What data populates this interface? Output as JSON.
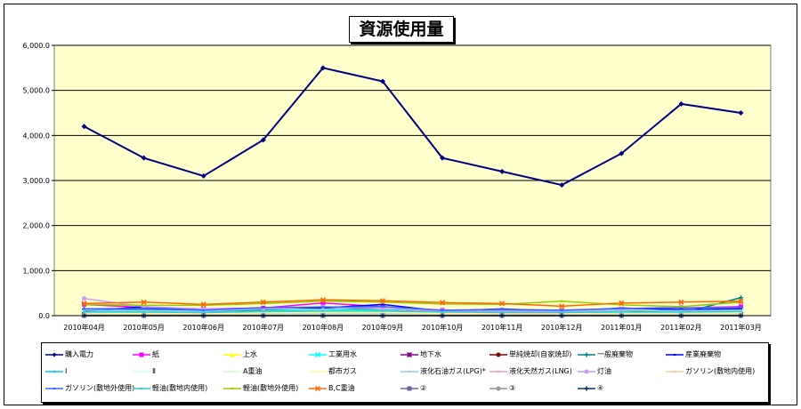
{
  "chart_data": {
    "type": "line",
    "title": "資源使用量",
    "categories": [
      "2010年04月",
      "2010年05月",
      "2010年06月",
      "2010年07月",
      "2010年08月",
      "2010年09月",
      "2010年10月",
      "2010年11月",
      "2010年12月",
      "2011年01月",
      "2011年02月",
      "2011年03月"
    ],
    "ylim": [
      0,
      6000
    ],
    "yticks": [
      "0.0",
      "1,000.0",
      "2,000.0",
      "3,000.0",
      "4,000.0",
      "5,000.0",
      "6,000.0"
    ],
    "grid": true,
    "plot_bg": "#ffffcc",
    "legend_position": "bottom",
    "series": [
      {
        "name": "購入電力",
        "color": "#000080",
        "marker": "diamond",
        "values": [
          4200,
          3500,
          3100,
          3900,
          5500,
          5200,
          3500,
          3200,
          2900,
          3600,
          4700,
          4500
        ]
      },
      {
        "name": "紙",
        "color": "#ff00ff",
        "marker": "square",
        "values": [
          250,
          180,
          150,
          170,
          280,
          200,
          120,
          100,
          110,
          150,
          170,
          200
        ]
      },
      {
        "name": "上水",
        "color": "#ffff00",
        "marker": "triangle",
        "values": [
          60,
          55,
          50,
          60,
          70,
          65,
          55,
          50,
          50,
          55,
          60,
          60
        ]
      },
      {
        "name": "工業用水",
        "color": "#00ffff",
        "marker": "x",
        "values": [
          100,
          90,
          80,
          110,
          130,
          120,
          90,
          80,
          80,
          90,
          100,
          110
        ]
      },
      {
        "name": "地下水",
        "color": "#800080",
        "marker": "star",
        "values": [
          20,
          20,
          20,
          20,
          20,
          20,
          20,
          20,
          20,
          20,
          20,
          20
        ]
      },
      {
        "name": "単純焼却(自家焼却)",
        "color": "#800000",
        "marker": "circle",
        "values": [
          10,
          10,
          10,
          10,
          10,
          10,
          10,
          10,
          10,
          10,
          10,
          10
        ]
      },
      {
        "name": "一般廃棄物",
        "color": "#008080",
        "marker": "plus",
        "values": [
          150,
          140,
          100,
          130,
          160,
          150,
          100,
          110,
          90,
          120,
          50,
          400
        ]
      },
      {
        "name": "産業廃棄物",
        "color": "#0000ff",
        "marker": "none",
        "values": [
          100,
          200,
          120,
          160,
          170,
          250,
          100,
          150,
          90,
          170,
          130,
          150
        ]
      },
      {
        "name": "Ⅰ",
        "color": "#00ccff",
        "marker": "none",
        "values": [
          50,
          50,
          50,
          50,
          50,
          50,
          50,
          50,
          50,
          50,
          50,
          50
        ]
      },
      {
        "name": "Ⅱ",
        "color": "#ccffff",
        "marker": "none",
        "values": [
          40,
          40,
          40,
          40,
          40,
          40,
          40,
          40,
          40,
          40,
          40,
          40
        ]
      },
      {
        "name": "A重油",
        "color": "#ccffcc",
        "marker": "none",
        "values": [
          30,
          30,
          30,
          30,
          30,
          30,
          30,
          30,
          30,
          30,
          30,
          30
        ]
      },
      {
        "name": "都市ガス",
        "color": "#ffff99",
        "marker": "none",
        "values": [
          70,
          60,
          60,
          70,
          80,
          80,
          60,
          60,
          60,
          70,
          70,
          70
        ]
      },
      {
        "name": "液化石油ガス(LPG)*",
        "color": "#99ccff",
        "marker": "none",
        "values": [
          120,
          110,
          100,
          150,
          140,
          200,
          100,
          90,
          90,
          120,
          110,
          120
        ]
      },
      {
        "name": "液化天然ガス(LNG)",
        "color": "#ff99cc",
        "marker": "none",
        "values": [
          20,
          20,
          20,
          20,
          20,
          20,
          20,
          20,
          20,
          20,
          20,
          20
        ]
      },
      {
        "name": "灯油",
        "color": "#cc99ff",
        "marker": "circle",
        "values": [
          380,
          200,
          150,
          150,
          200,
          150,
          100,
          100,
          100,
          150,
          200,
          300
        ]
      },
      {
        "name": "ガソリン(敷地内使用)",
        "color": "#ffcc99",
        "marker": "none",
        "values": [
          30,
          30,
          30,
          30,
          30,
          30,
          30,
          30,
          30,
          30,
          30,
          30
        ]
      },
      {
        "name": "ガソリン(敷地外使用)",
        "color": "#3366ff",
        "marker": "none",
        "values": [
          150,
          160,
          120,
          180,
          190,
          200,
          120,
          140,
          120,
          160,
          170,
          180
        ]
      },
      {
        "name": "軽油(敷地内使用)",
        "color": "#33cccc",
        "marker": "none",
        "values": [
          80,
          80,
          70,
          90,
          100,
          100,
          80,
          70,
          70,
          80,
          80,
          90
        ]
      },
      {
        "name": "軽油(敷地外使用)",
        "color": "#99cc00",
        "marker": "none",
        "values": [
          250,
          230,
          230,
          270,
          320,
          300,
          260,
          250,
          320,
          240,
          200,
          300
        ]
      },
      {
        "name": "B,C重油",
        "color": "#ff6600",
        "marker": "x",
        "values": [
          270,
          300,
          250,
          300,
          350,
          330,
          290,
          270,
          210,
          280,
          300,
          320
        ]
      },
      {
        "name": "②",
        "color": "#666699",
        "marker": "square",
        "values": [
          0,
          0,
          0,
          0,
          0,
          0,
          0,
          0,
          0,
          0,
          0,
          0
        ]
      },
      {
        "name": "③",
        "color": "#969696",
        "marker": "circle",
        "values": [
          0,
          0,
          0,
          0,
          0,
          0,
          0,
          0,
          0,
          0,
          0,
          0
        ]
      },
      {
        "name": "④",
        "color": "#003366",
        "marker": "plus",
        "values": [
          0,
          0,
          0,
          0,
          0,
          0,
          0,
          0,
          0,
          0,
          0,
          0
        ]
      }
    ]
  }
}
